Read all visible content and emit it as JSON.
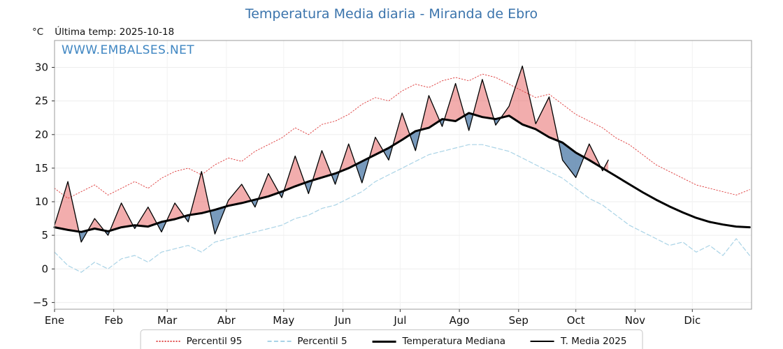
{
  "header": {
    "y_unit": "°C",
    "last_temp": "Última temp: 2025-10-18"
  },
  "watermark": "WWW.EMBALSES.NET",
  "chart_data": {
    "type": "line",
    "title": "Temperatura Media diaria - Miranda de Ebro",
    "x_unit": "day_of_year",
    "xlim": [
      1,
      366
    ],
    "ylim": [
      -6,
      34
    ],
    "yticks": [
      -5,
      0,
      5,
      10,
      15,
      20,
      25,
      30
    ],
    "grid": true,
    "legend_position": "bottom",
    "fill_above": "rgba(232,106,106,0.55)",
    "fill_below": "rgba(96,136,176,0.85)",
    "months": [
      {
        "label": "Ene",
        "day": 1
      },
      {
        "label": "Feb",
        "day": 32
      },
      {
        "label": "Mar",
        "day": 60
      },
      {
        "label": "Abr",
        "day": 91
      },
      {
        "label": "May",
        "day": 121
      },
      {
        "label": "Jun",
        "day": 152
      },
      {
        "label": "Jul",
        "day": 182
      },
      {
        "label": "Ago",
        "day": 213
      },
      {
        "label": "Sep",
        "day": 244
      },
      {
        "label": "Oct",
        "day": 274
      },
      {
        "label": "Nov",
        "day": 305
      },
      {
        "label": "Dic",
        "day": 335
      }
    ],
    "x": [
      1,
      8,
      15,
      22,
      29,
      36,
      43,
      50,
      57,
      64,
      71,
      78,
      85,
      92,
      99,
      106,
      113,
      120,
      127,
      134,
      141,
      148,
      155,
      162,
      169,
      176,
      183,
      190,
      197,
      204,
      211,
      218,
      225,
      232,
      239,
      246,
      253,
      260,
      267,
      274,
      281,
      288,
      295,
      302,
      309,
      316,
      323,
      330,
      337,
      344,
      351,
      358,
      365
    ],
    "series": [
      {
        "name": "Percentil 95",
        "role": "p95",
        "color": "#e04a4a",
        "style": "dotted",
        "dash": "1.5 2.6",
        "width": 1,
        "values": [
          12.0,
          10.5,
          11.5,
          12.5,
          11.0,
          12.0,
          13.0,
          12.0,
          13.5,
          14.5,
          15.0,
          14.0,
          15.5,
          16.5,
          16.0,
          17.5,
          18.5,
          19.5,
          21.0,
          20.0,
          21.5,
          22.0,
          23.0,
          24.5,
          25.5,
          25.0,
          26.5,
          27.5,
          27.0,
          28.0,
          28.5,
          28.0,
          29.0,
          28.5,
          27.5,
          26.5,
          25.5,
          26.0,
          24.5,
          23.0,
          22.0,
          21.0,
          19.5,
          18.5,
          17.0,
          15.5,
          14.5,
          13.5,
          12.5,
          12.0,
          11.5,
          11.0,
          11.8
        ]
      },
      {
        "name": "Percentil 5",
        "role": "p5",
        "color": "#a9d3e6",
        "style": "dashed",
        "dash": "6 3.5",
        "width": 1.2,
        "values": [
          2.5,
          0.5,
          -0.5,
          1.0,
          0.0,
          1.5,
          2.0,
          1.0,
          2.5,
          3.0,
          3.5,
          2.5,
          4.0,
          4.5,
          5.0,
          5.5,
          6.0,
          6.5,
          7.5,
          8.0,
          9.0,
          9.5,
          10.5,
          11.5,
          13.0,
          14.0,
          15.0,
          16.0,
          17.0,
          17.5,
          18.0,
          18.5,
          18.5,
          18.0,
          17.5,
          16.5,
          15.5,
          14.5,
          13.5,
          12.0,
          10.5,
          9.5,
          8.0,
          6.5,
          5.5,
          4.5,
          3.5,
          4.0,
          2.5,
          3.5,
          2.0,
          4.5,
          2.0
        ]
      },
      {
        "name": "Temperatura Mediana",
        "role": "median",
        "color": "#000000",
        "style": "solid",
        "dash": "",
        "width": 3,
        "values": [
          6.2,
          5.8,
          5.5,
          6.0,
          5.6,
          6.2,
          6.5,
          6.3,
          7.0,
          7.4,
          8.0,
          8.3,
          8.8,
          9.4,
          9.8,
          10.3,
          10.8,
          11.5,
          12.3,
          13.0,
          13.6,
          14.2,
          15.0,
          16.0,
          17.0,
          18.0,
          19.2,
          20.5,
          21.0,
          22.3,
          22.0,
          23.2,
          22.6,
          22.3,
          22.8,
          21.5,
          20.8,
          19.6,
          18.8,
          17.3,
          16.2,
          15.0,
          13.8,
          12.6,
          11.4,
          10.3,
          9.3,
          8.4,
          7.6,
          7.0,
          6.6,
          6.3,
          6.2
        ]
      },
      {
        "name": "T. Media 2025",
        "role": "current",
        "color": "#000000",
        "style": "solid",
        "dash": "",
        "width": 1.3,
        "x": [
          1,
          8,
          15,
          22,
          29,
          36,
          43,
          50,
          57,
          64,
          71,
          78,
          85,
          92,
          99,
          106,
          113,
          120,
          127,
          134,
          141,
          148,
          155,
          162,
          169,
          176,
          183,
          190,
          197,
          204,
          211,
          218,
          225,
          232,
          239,
          246,
          253,
          260,
          267,
          274,
          281,
          288,
          291
        ],
        "values": [
          6.5,
          13.0,
          4.0,
          7.5,
          5.0,
          9.8,
          6.0,
          9.2,
          5.5,
          9.8,
          7.0,
          14.5,
          5.2,
          10.2,
          12.6,
          9.2,
          14.2,
          10.6,
          16.8,
          11.2,
          17.6,
          12.6,
          18.6,
          12.8,
          19.6,
          16.2,
          23.2,
          17.6,
          25.8,
          21.2,
          27.6,
          20.6,
          28.2,
          21.4,
          24.2,
          30.2,
          21.6,
          25.6,
          16.2,
          13.6,
          18.6,
          14.6,
          16.2
        ]
      }
    ]
  }
}
